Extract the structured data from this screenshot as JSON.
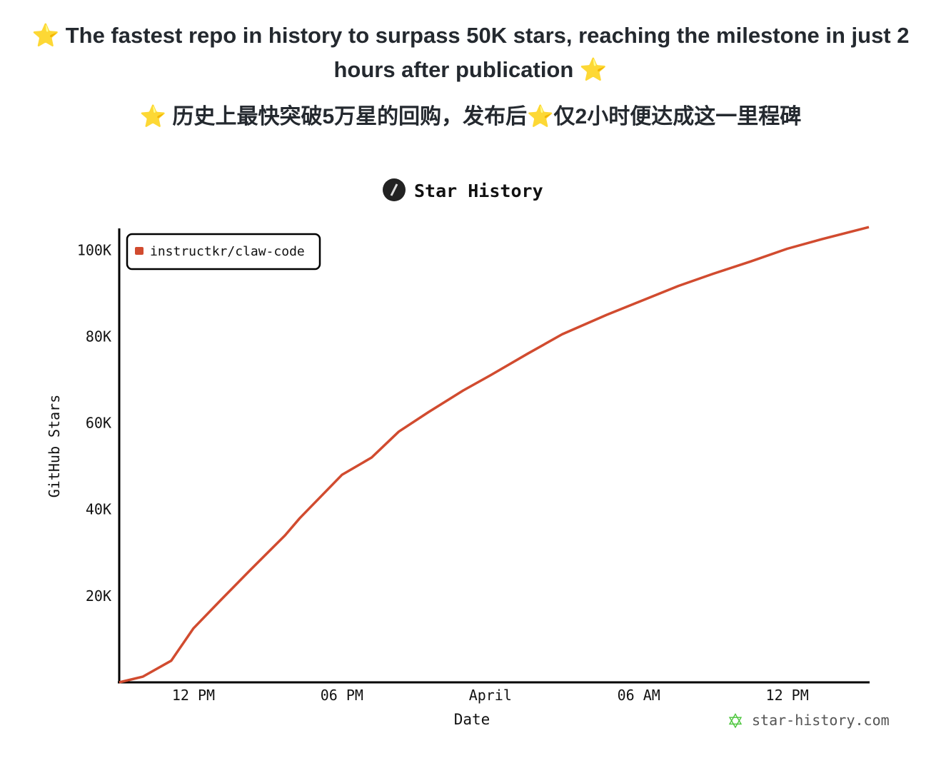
{
  "header": {
    "title_en": "⭐ The fastest repo in history to surpass 50K stars, reaching the milestone in just 2 hours after publication ⭐",
    "title_zh": "⭐ 历史上最快突破5万星的回购，发布后⭐仅2小时便达成这一里程碑"
  },
  "chart_data": {
    "type": "line",
    "title": "Star History",
    "xlabel": "Date",
    "ylabel": "GitHub Stars",
    "x_unit": "hours since start",
    "xlim": [
      0,
      30.3
    ],
    "ylim": [
      0,
      105000
    ],
    "x_ticks": [
      {
        "value": 3,
        "label": "12 PM"
      },
      {
        "value": 9,
        "label": "06 PM"
      },
      {
        "value": 15,
        "label": "April"
      },
      {
        "value": 21,
        "label": "06 AM"
      },
      {
        "value": 27,
        "label": "12 PM"
      }
    ],
    "y_ticks": [
      {
        "value": 20000,
        "label": "20K"
      },
      {
        "value": 40000,
        "label": "40K"
      },
      {
        "value": 60000,
        "label": "60K"
      },
      {
        "value": 80000,
        "label": "80K"
      },
      {
        "value": 100000,
        "label": "100K"
      }
    ],
    "legend": {
      "position": "top-left"
    },
    "series": [
      {
        "name": "instructkr/claw-code",
        "color": "#d14b2f",
        "x": [
          0,
          0.95,
          2.1,
          3,
          4.1,
          5.3,
          6.7,
          7.3,
          9,
          10.2,
          11.3,
          12.5,
          13.9,
          15,
          16.5,
          17.9,
          19.7,
          21,
          22.6,
          24,
          25.5,
          27,
          28.4,
          30.3
        ],
        "y": [
          0,
          1300,
          5000,
          12500,
          19000,
          26000,
          34000,
          38000,
          48000,
          52000,
          58000,
          62500,
          67500,
          71000,
          76000,
          80500,
          85000,
          88000,
          91700,
          94500,
          97300,
          100300,
          102500,
          105300
        ]
      }
    ]
  },
  "watermark": "star-history.com"
}
